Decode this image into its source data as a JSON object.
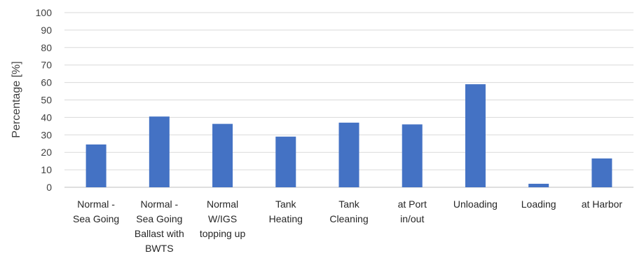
{
  "chart_data": {
    "type": "bar",
    "title": "",
    "xlabel": "",
    "ylabel": "Percentage [%]",
    "ylim": [
      0,
      100
    ],
    "yticks": [
      0,
      10,
      20,
      30,
      40,
      50,
      60,
      70,
      80,
      90,
      100
    ],
    "grid": true,
    "bar_color": "#4472C4",
    "categories": [
      [
        "Normal -",
        "Sea Going"
      ],
      [
        "Normal -",
        "Sea Going",
        "Ballast with",
        "BWTS"
      ],
      [
        "Normal",
        "W/IGS",
        "topping up"
      ],
      [
        "Tank",
        "Heating"
      ],
      [
        "Tank",
        "Cleaning"
      ],
      [
        "at Port",
        "in/out"
      ],
      [
        "Unloading"
      ],
      [
        "Loading"
      ],
      [
        "at Harbor"
      ]
    ],
    "values": [
      24.5,
      40.5,
      36.3,
      29.0,
      37.0,
      36.0,
      59.0,
      2.0,
      16.5
    ]
  }
}
